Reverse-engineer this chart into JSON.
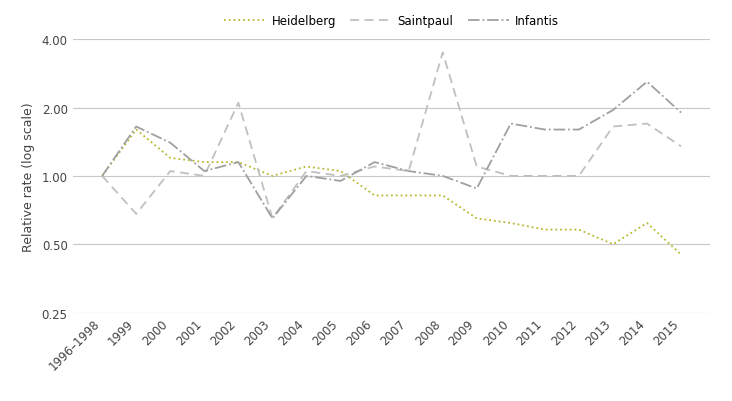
{
  "x_labels": [
    "1996–1998",
    "1999",
    "2000",
    "2001",
    "2002",
    "2003",
    "2004",
    "2005",
    "2006",
    "2007",
    "2008",
    "2009",
    "2010",
    "2011",
    "2012",
    "2013",
    "2014",
    "2015"
  ],
  "heidelberg": [
    1.0,
    1.6,
    1.2,
    1.15,
    1.15,
    1.0,
    1.1,
    1.05,
    0.82,
    0.82,
    0.82,
    0.65,
    0.62,
    0.58,
    0.58,
    0.5,
    0.62,
    0.45
  ],
  "saintpaul": [
    1.0,
    0.68,
    1.05,
    1.0,
    2.1,
    0.65,
    1.05,
    1.0,
    1.1,
    1.05,
    3.5,
    1.1,
    1.0,
    1.0,
    1.0,
    1.65,
    1.7,
    1.35
  ],
  "infantis": [
    1.0,
    1.65,
    1.4,
    1.05,
    1.15,
    0.65,
    1.0,
    0.95,
    1.15,
    1.05,
    1.0,
    0.88,
    1.7,
    1.6,
    1.6,
    1.95,
    2.6,
    1.9
  ],
  "heidelberg_color": "#b8b830",
  "saintpaul_color": "#c0c0c0",
  "infantis_color": "#a0a0a0",
  "ylabel": "Relative rate (log scale)",
  "legend_labels": [
    "Heidelberg",
    "Saintpaul",
    "Infantis"
  ],
  "yticks": [
    0.25,
    0.5,
    1.0,
    2.0,
    4.0
  ],
  "ylim_log": [
    0.25,
    4.0
  ],
  "background_color": "#ffffff",
  "grid_color": "#c8c8c8"
}
